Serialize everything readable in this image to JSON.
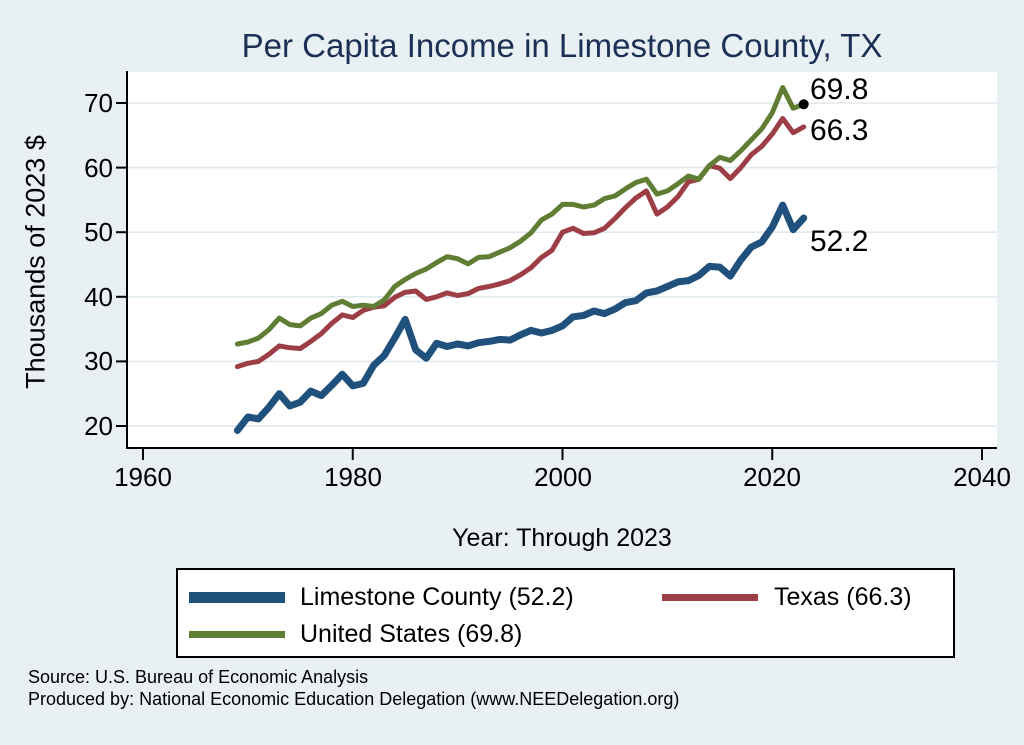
{
  "title": "Per Capita Income in Limestone County, TX",
  "colors": {
    "background": "#e9f0f4",
    "plot_background": "#ffffff",
    "grid": "#dfe9f0",
    "axis": "#000000",
    "title_navy": "#1b3054",
    "limestone_blue": "#20507c",
    "texas_red": "#9d3e46",
    "us_green": "#5f7d33",
    "end_dot": "#000000"
  },
  "chart_data": {
    "type": "line",
    "title": "Per Capita Income in Limestone County, TX",
    "xlabel": "Year: Through 2023",
    "ylabel": "Thousands of 2023 $",
    "xlim": [
      1958.5,
      2041.5
    ],
    "ylim": [
      16.5,
      75
    ],
    "grid": "horizontal",
    "legend_position": "bottom",
    "x_ticks": [
      "1960",
      "1980",
      "2000",
      "2020",
      "2040"
    ],
    "x_tick_values": [
      1960,
      1980,
      2000,
      2020,
      2040
    ],
    "y_ticks": [
      "70",
      "60",
      "50",
      "40",
      "30",
      "20"
    ],
    "y_tick_values": [
      70,
      60,
      50,
      40,
      30,
      20
    ],
    "years": [
      1969,
      1970,
      1971,
      1972,
      1973,
      1974,
      1975,
      1976,
      1977,
      1978,
      1979,
      1980,
      1981,
      1982,
      1983,
      1984,
      1985,
      1986,
      1987,
      1988,
      1989,
      1990,
      1991,
      1992,
      1993,
      1994,
      1995,
      1996,
      1997,
      1998,
      1999,
      2000,
      2001,
      2002,
      2003,
      2004,
      2005,
      2006,
      2007,
      2008,
      2009,
      2010,
      2011,
      2012,
      2013,
      2014,
      2015,
      2016,
      2017,
      2018,
      2019,
      2020,
      2021,
      2022,
      2023
    ],
    "series": [
      {
        "name": "Limestone County (52.2)",
        "color": "#20507c",
        "line_width": 7,
        "end_label": "52.2",
        "end_value": 52.2,
        "values": [
          19.3,
          21.4,
          21.1,
          22.9,
          25.0,
          23.1,
          23.7,
          25.4,
          24.7,
          26.3,
          28.0,
          26.2,
          26.6,
          29.4,
          30.9,
          33.6,
          36.5,
          31.8,
          30.5,
          32.8,
          32.3,
          32.7,
          32.4,
          32.9,
          33.1,
          33.4,
          33.3,
          34.1,
          34.8,
          34.4,
          34.8,
          35.5,
          36.9,
          37.1,
          37.8,
          37.4,
          38.1,
          39.1,
          39.4,
          40.6,
          40.9,
          41.6,
          42.3,
          42.5,
          43.3,
          44.7,
          44.6,
          43.2,
          45.7,
          47.7,
          48.5,
          50.8,
          54.2,
          50.4,
          52.2
        ]
      },
      {
        "name": "Texas (66.3)",
        "color": "#9d3e46",
        "line_width": 5,
        "end_label": "66.3",
        "end_value": 66.3,
        "values": [
          29.2,
          29.7,
          30.0,
          31.1,
          32.4,
          32.1,
          32.0,
          33.1,
          34.3,
          35.9,
          37.2,
          36.8,
          37.9,
          38.4,
          38.6,
          39.9,
          40.7,
          40.9,
          39.6,
          40.0,
          40.6,
          40.2,
          40.5,
          41.3,
          41.6,
          42.0,
          42.5,
          43.4,
          44.5,
          46.1,
          47.2,
          50.0,
          50.6,
          49.8,
          49.9,
          50.6,
          52.1,
          53.8,
          55.3,
          56.4,
          52.8,
          53.9,
          55.5,
          57.8,
          58.2,
          60.3,
          59.9,
          58.3,
          60.0,
          62.0,
          63.3,
          65.2,
          67.6,
          65.4,
          66.3
        ]
      },
      {
        "name": "United States (69.8)",
        "color": "#5f7d33",
        "line_width": 5,
        "end_label": "69.8",
        "end_value": 69.8,
        "values": [
          32.7,
          33.0,
          33.6,
          34.9,
          36.7,
          35.7,
          35.5,
          36.7,
          37.4,
          38.7,
          39.3,
          38.5,
          38.7,
          38.5,
          39.5,
          41.6,
          42.7,
          43.6,
          44.3,
          45.3,
          46.2,
          45.9,
          45.1,
          46.1,
          46.2,
          46.9,
          47.6,
          48.6,
          49.9,
          51.9,
          52.8,
          54.3,
          54.3,
          53.9,
          54.2,
          55.2,
          55.6,
          56.7,
          57.7,
          58.2,
          55.9,
          56.4,
          57.5,
          58.7,
          58.2,
          60.3,
          61.6,
          61.1,
          62.6,
          64.3,
          66.0,
          68.5,
          72.4,
          69.2,
          69.8
        ]
      }
    ],
    "end_dot": {
      "year": 2023,
      "value": 69.8
    }
  },
  "footer": {
    "source": "Source: U.S. Bureau of Economic Analysis",
    "produced_by": "Produced by: National Economic Education Delegation (www.NEEDelegation.org)"
  }
}
